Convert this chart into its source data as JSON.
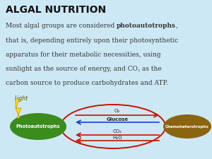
{
  "bg_color": "#cde8f5",
  "title": "ALGAL NUTRITION",
  "title_fontsize": 10,
  "text_fontsize": 6.5,
  "text_color": "#333333",
  "diagram": {
    "left_ellipse_color": "#3a8c1c",
    "right_ellipse_color": "#8B6410",
    "ring_color": "#cc1100",
    "arrow_up_color": "#cc1100",
    "arrow_down_color": "#1144cc",
    "label_left": "Photoautotrophs",
    "label_right": "Chemoheterotrophs",
    "label_o2": "O₂",
    "label_glucose": "Glucose",
    "label_co2": "CO₂",
    "label_h2o": "H₂O",
    "label_light": "Light"
  }
}
